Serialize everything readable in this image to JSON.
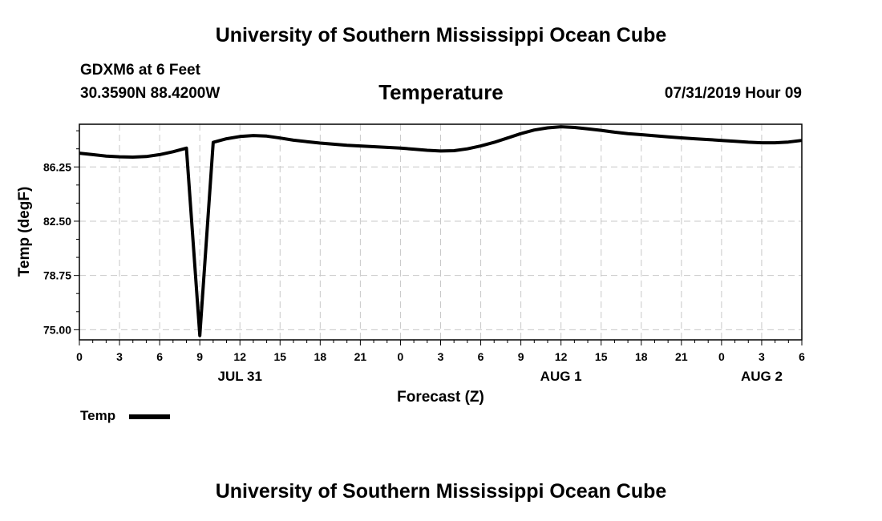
{
  "header": {
    "title_top": "University of Southern Mississippi Ocean Cube",
    "title_bottom": "University of Southern Mississippi Ocean Cube",
    "station": "GDXM6 at 6 Feet",
    "coords": "30.3590N 88.4200W",
    "chart_title": "Temperature",
    "datetime": "07/31/2019 Hour 09"
  },
  "legend": {
    "label": "Temp",
    "color": "#000000"
  },
  "chart_data": {
    "type": "line",
    "title": "Temperature",
    "xlabel": "Forecast (Z)",
    "ylabel": "Temp (degF)",
    "xlim": [
      0,
      54
    ],
    "ylim": [
      74.3,
      89.2
    ],
    "yticks": [
      75.0,
      78.75,
      82.5,
      86.25
    ],
    "ytick_labels": [
      "75.00",
      "78.75",
      "82.50",
      "86.25"
    ],
    "xticks": [
      0,
      3,
      6,
      9,
      12,
      15,
      18,
      21,
      24,
      27,
      30,
      33,
      36,
      39,
      42,
      45,
      48,
      51,
      54
    ],
    "xtick_labels": [
      "0",
      "3",
      "6",
      "9",
      "12",
      "15",
      "18",
      "21",
      "0",
      "3",
      "6",
      "9",
      "12",
      "15",
      "18",
      "21",
      "0",
      "3",
      "6"
    ],
    "date_labels": [
      {
        "x": 12,
        "label": "JUL 31"
      },
      {
        "x": 36,
        "label": "AUG 1"
      },
      {
        "x": 51,
        "label": "AUG 2"
      }
    ],
    "grid": true,
    "series": [
      {
        "name": "Temp",
        "color": "#000000",
        "x": [
          0,
          1,
          2,
          3,
          4,
          5,
          6,
          7,
          8,
          9,
          10,
          11,
          12,
          13,
          14,
          15,
          16,
          17,
          18,
          19,
          20,
          21,
          22,
          23,
          24,
          25,
          26,
          27,
          28,
          29,
          30,
          31,
          32,
          33,
          34,
          35,
          36,
          37,
          38,
          39,
          40,
          41,
          42,
          43,
          44,
          45,
          46,
          47,
          48,
          49,
          50,
          51,
          52,
          53,
          54
        ],
        "values": [
          87.2,
          87.1,
          87.0,
          86.95,
          86.93,
          86.97,
          87.1,
          87.3,
          87.55,
          74.6,
          87.95,
          88.2,
          88.35,
          88.42,
          88.38,
          88.25,
          88.1,
          88.0,
          87.9,
          87.82,
          87.75,
          87.7,
          87.65,
          87.6,
          87.55,
          87.48,
          87.4,
          87.35,
          87.37,
          87.5,
          87.7,
          87.95,
          88.25,
          88.55,
          88.8,
          88.95,
          89.03,
          88.98,
          88.88,
          88.78,
          88.65,
          88.55,
          88.48,
          88.4,
          88.33,
          88.26,
          88.2,
          88.14,
          88.08,
          88.02,
          87.96,
          87.92,
          87.92,
          87.97,
          88.08
        ]
      }
    ]
  }
}
